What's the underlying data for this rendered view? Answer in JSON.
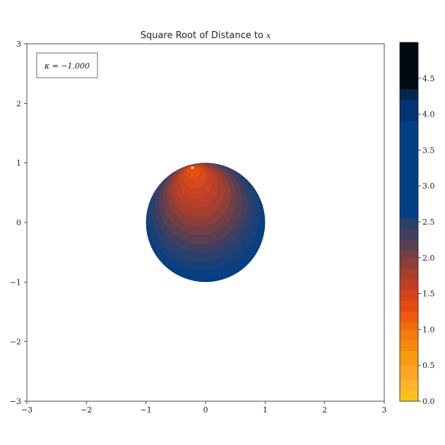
{
  "chart_data": {
    "type": "heatmap",
    "title": "Square Root of Distance to",
    "title_symbol": "x",
    "xlabel": "",
    "ylabel": "",
    "xlim": [
      -3,
      3
    ],
    "ylim": [
      -3,
      3
    ],
    "x_ticks": [
      -3,
      -2,
      -1,
      0,
      1,
      2,
      3
    ],
    "y_ticks": [
      -3,
      -2,
      -1,
      0,
      1,
      2,
      3
    ],
    "x_tick_labels": [
      "−3",
      "−2",
      "−1",
      "0",
      "1",
      "2",
      "3"
    ],
    "y_tick_labels": [
      "−3",
      "−2",
      "−1",
      "0",
      "1",
      "2",
      "3"
    ],
    "grid": false,
    "annotation": "κ = −1.000",
    "disk": {
      "center": [
        0,
        0
      ],
      "radius": 1
    },
    "reference_point": [
      -0.22,
      0.92
    ],
    "colorbar": {
      "range": [
        0,
        5
      ],
      "ticks": [
        0.0,
        0.5,
        1.0,
        1.5,
        2.0,
        2.5,
        3.0,
        3.5,
        4.0,
        4.5
      ],
      "tick_labels": [
        "0.0",
        "0.5",
        "1.0",
        "1.5",
        "2.0",
        "2.5",
        "3.0",
        "3.5",
        "4.0",
        "4.5"
      ],
      "levels": [
        {
          "from": 0.0,
          "to": 0.15,
          "color": "#fdc01b"
        },
        {
          "from": 0.15,
          "to": 0.3,
          "color": "#fdb32a"
        },
        {
          "from": 0.3,
          "to": 0.5,
          "color": "#fca527"
        },
        {
          "from": 0.5,
          "to": 0.7,
          "color": "#f99a0c"
        },
        {
          "from": 0.7,
          "to": 0.85,
          "color": "#f6890a"
        },
        {
          "from": 0.85,
          "to": 1.0,
          "color": "#f37a0c"
        },
        {
          "from": 1.0,
          "to": 1.1,
          "color": "#f06a0e"
        },
        {
          "from": 1.1,
          "to": 1.25,
          "color": "#ec5a0e"
        },
        {
          "from": 1.25,
          "to": 1.4,
          "color": "#e54b0f"
        },
        {
          "from": 1.4,
          "to": 1.55,
          "color": "#d8421a"
        },
        {
          "from": 1.55,
          "to": 1.7,
          "color": "#c03f24"
        },
        {
          "from": 1.7,
          "to": 1.85,
          "color": "#a53f2e"
        },
        {
          "from": 1.85,
          "to": 2.0,
          "color": "#8c3f3a"
        },
        {
          "from": 2.0,
          "to": 2.1,
          "color": "#733f46"
        },
        {
          "from": 2.1,
          "to": 2.25,
          "color": "#5a3f52"
        },
        {
          "from": 2.25,
          "to": 2.4,
          "color": "#413f60"
        },
        {
          "from": 2.4,
          "to": 2.55,
          "color": "#2a406d"
        },
        {
          "from": 2.55,
          "to": 3.9,
          "color": "#033f85"
        },
        {
          "from": 3.9,
          "to": 4.2,
          "color": "#023372"
        },
        {
          "from": 4.2,
          "to": 4.35,
          "color": "#02284f"
        },
        {
          "from": 4.35,
          "to": 5.0,
          "color": "#000a12"
        }
      ]
    },
    "contour_center": [
      -0.16,
      0.72
    ]
  }
}
